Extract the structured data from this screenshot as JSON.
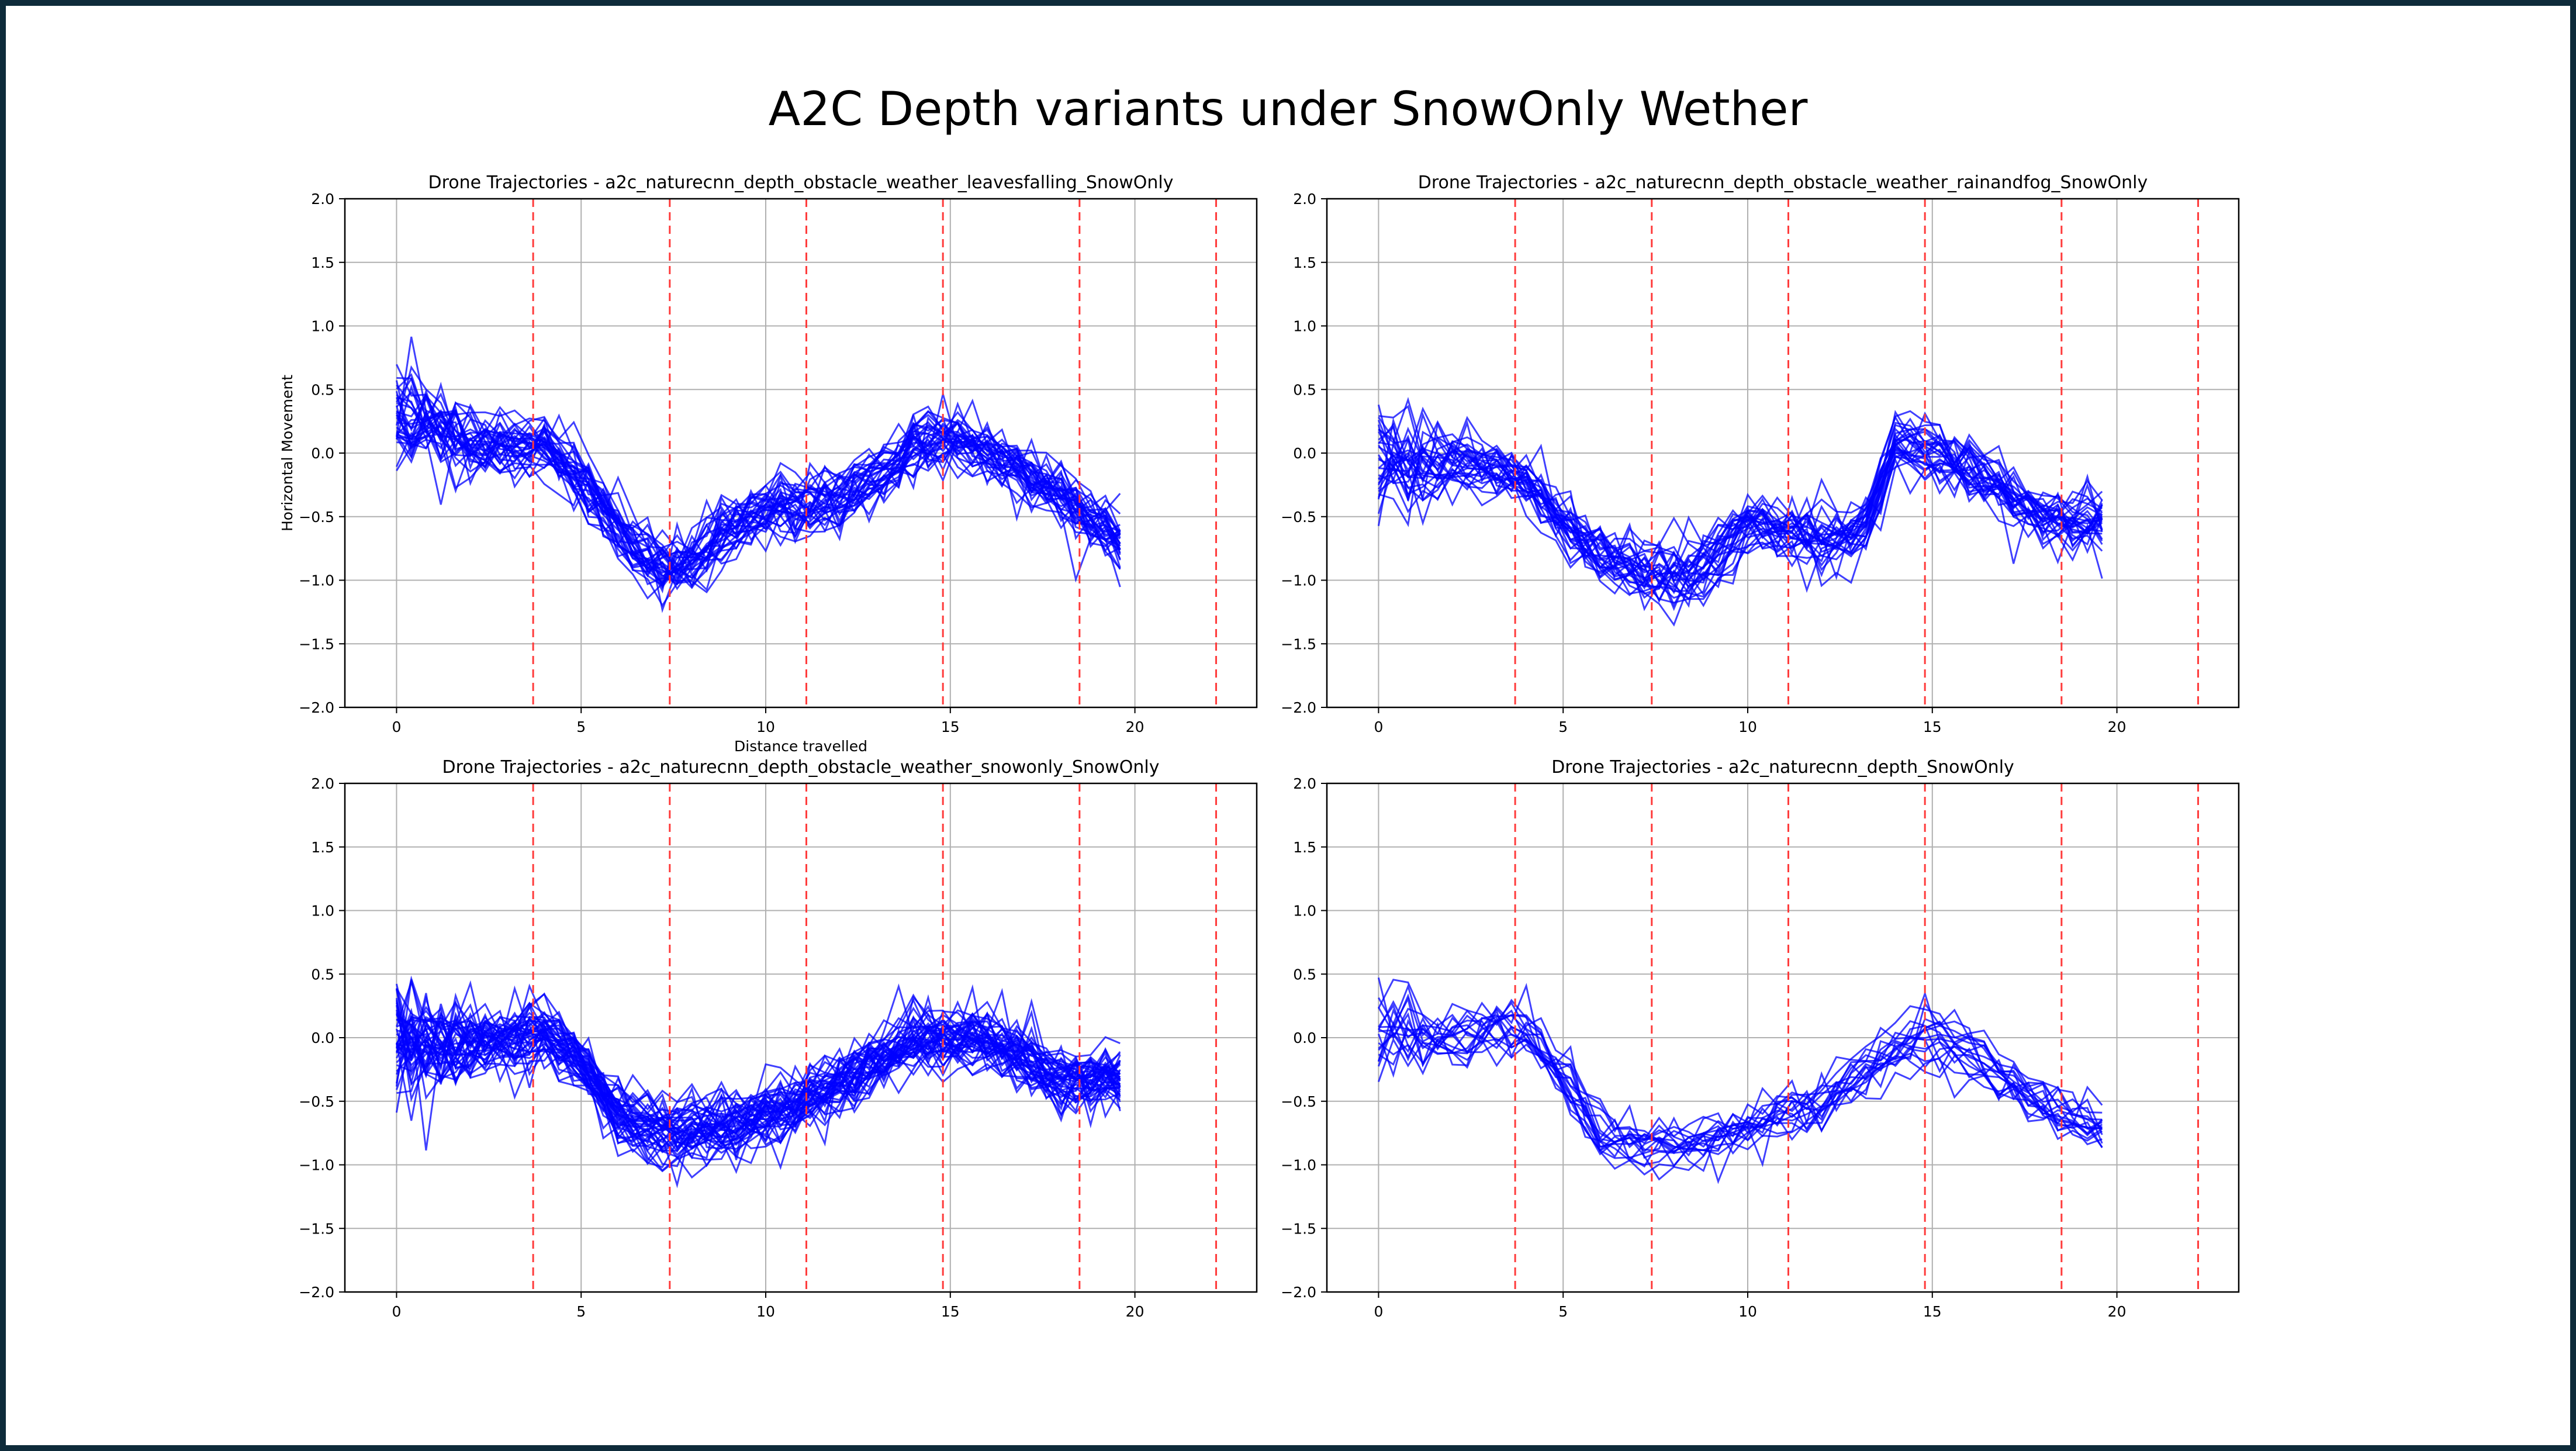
{
  "slide": {
    "title": "A2C Depth variants under SnowOnly Wether"
  },
  "colors": {
    "trajectory": "#0000ff",
    "marker": "#ff3b3b",
    "grid": "#b0b0b0",
    "background": "#ffffff",
    "frame": "#0e2b3a"
  },
  "chart_data": [
    {
      "type": "line",
      "title": "Drone Trajectories - a2c_naturecnn_depth_obstacle_weather_leavesfalling_SnowOnly",
      "xlabel": "Distance travelled",
      "ylabel": "Horizontal Movement",
      "xlim": [
        -1.4,
        23.3
      ],
      "ylim": [
        -2.0,
        2.0
      ],
      "x_ticks": [
        0,
        5,
        10,
        15,
        20
      ],
      "y_ticks": [
        -2.0,
        -1.5,
        -1.0,
        -0.5,
        0.0,
        0.5,
        1.0,
        1.5,
        2.0
      ],
      "grid": true,
      "vlines": [
        3.7,
        7.4,
        11.1,
        14.8,
        18.5,
        22.2
      ],
      "mean_path": {
        "x": [
          0,
          1,
          2,
          3,
          4,
          5,
          6,
          7,
          8,
          9,
          10,
          11,
          12,
          13,
          14,
          15,
          16,
          17,
          18,
          19,
          19.6
        ],
        "y": [
          0.3,
          0.2,
          0.1,
          0.05,
          0.05,
          -0.2,
          -0.6,
          -0.9,
          -0.85,
          -0.6,
          -0.45,
          -0.4,
          -0.35,
          -0.2,
          0.05,
          0.1,
          0.0,
          -0.15,
          -0.35,
          -0.55,
          -0.7
        ]
      },
      "spread": [
        0.35,
        0.3,
        0.2,
        0.15,
        0.15,
        0.15,
        0.15,
        0.15,
        0.15,
        0.15,
        0.15,
        0.15,
        0.15,
        0.15,
        0.15,
        0.15,
        0.15,
        0.15,
        0.15,
        0.15,
        0.15
      ],
      "trajectory_count": 35,
      "seed": 11
    },
    {
      "type": "line",
      "title": "Drone Trajectories - a2c_naturecnn_depth_obstacle_weather_rainandfog_SnowOnly",
      "xlabel": "",
      "ylabel": "",
      "xlim": [
        -1.4,
        23.3
      ],
      "ylim": [
        -2.0,
        2.0
      ],
      "x_ticks": [
        0,
        5,
        10,
        15,
        20
      ],
      "y_ticks": [
        -2.0,
        -1.5,
        -1.0,
        -0.5,
        0.0,
        0.5,
        1.0,
        1.5,
        2.0
      ],
      "grid": true,
      "vlines": [
        3.7,
        7.4,
        11.1,
        14.8,
        18.5,
        22.2
      ],
      "mean_path": {
        "x": [
          0,
          1,
          2,
          3,
          4,
          5,
          6,
          7,
          8,
          9,
          10,
          11,
          12,
          13,
          14,
          15,
          16,
          17,
          18,
          19,
          19.6
        ],
        "y": [
          0.0,
          -0.15,
          -0.05,
          -0.1,
          -0.2,
          -0.55,
          -0.8,
          -0.95,
          -1.0,
          -0.9,
          -0.55,
          -0.6,
          -0.75,
          -0.7,
          0.05,
          0.0,
          -0.1,
          -0.3,
          -0.5,
          -0.55,
          -0.55
        ]
      },
      "spread": [
        0.45,
        0.35,
        0.15,
        0.15,
        0.15,
        0.15,
        0.15,
        0.15,
        0.15,
        0.15,
        0.15,
        0.15,
        0.15,
        0.15,
        0.15,
        0.15,
        0.15,
        0.15,
        0.15,
        0.15,
        0.15
      ],
      "trajectory_count": 30,
      "seed": 23
    },
    {
      "type": "line",
      "title": "Drone Trajectories - a2c_naturecnn_depth_obstacle_weather_snowonly_SnowOnly",
      "xlabel": "",
      "ylabel": "",
      "xlim": [
        -1.4,
        23.3
      ],
      "ylim": [
        -2.0,
        2.0
      ],
      "x_ticks": [
        0,
        5,
        10,
        15,
        20
      ],
      "y_ticks": [
        -2.0,
        -1.5,
        -1.0,
        -0.5,
        0.0,
        0.5,
        1.0,
        1.5,
        2.0
      ],
      "grid": true,
      "vlines": [
        3.7,
        7.4,
        11.1,
        14.8,
        18.5,
        22.2
      ],
      "mean_path": {
        "x": [
          0,
          1,
          2,
          3,
          4,
          5,
          6,
          7,
          8,
          9,
          10,
          11,
          12,
          13,
          14,
          15,
          16,
          17,
          18,
          19,
          19.6
        ],
        "y": [
          0.0,
          -0.05,
          -0.05,
          0.0,
          0.05,
          -0.2,
          -0.6,
          -0.75,
          -0.75,
          -0.7,
          -0.6,
          -0.5,
          -0.35,
          -0.2,
          -0.05,
          -0.05,
          -0.05,
          -0.15,
          -0.35,
          -0.3,
          -0.35
        ]
      },
      "spread": [
        0.4,
        0.35,
        0.2,
        0.15,
        0.15,
        0.15,
        0.15,
        0.15,
        0.15,
        0.15,
        0.15,
        0.15,
        0.15,
        0.15,
        0.15,
        0.15,
        0.15,
        0.15,
        0.15,
        0.15,
        0.15
      ],
      "trajectory_count": 45,
      "seed": 37
    },
    {
      "type": "line",
      "title": "Drone Trajectories - a2c_naturecnn_depth_SnowOnly",
      "xlabel": "",
      "ylabel": "",
      "xlim": [
        -1.4,
        23.3
      ],
      "ylim": [
        -2.0,
        2.0
      ],
      "x_ticks": [
        0,
        5,
        10,
        15,
        20
      ],
      "y_ticks": [
        -2.0,
        -1.5,
        -1.0,
        -0.5,
        0.0,
        0.5,
        1.0,
        1.5,
        2.0
      ],
      "grid": true,
      "vlines": [
        3.7,
        7.4,
        11.1,
        14.8,
        18.5,
        22.2
      ],
      "mean_path": {
        "x": [
          0,
          1,
          2,
          3,
          4,
          5,
          6,
          7,
          8,
          9,
          10,
          11,
          12,
          13,
          14,
          15,
          16,
          17,
          18,
          19,
          19.6
        ],
        "y": [
          0.05,
          0.05,
          0.0,
          0.05,
          0.05,
          -0.35,
          -0.8,
          -0.85,
          -0.85,
          -0.8,
          -0.7,
          -0.55,
          -0.5,
          -0.3,
          -0.1,
          0.0,
          -0.1,
          -0.3,
          -0.5,
          -0.65,
          -0.7
        ]
      },
      "spread": [
        0.35,
        0.3,
        0.15,
        0.12,
        0.12,
        0.12,
        0.12,
        0.12,
        0.12,
        0.12,
        0.12,
        0.12,
        0.12,
        0.12,
        0.12,
        0.12,
        0.12,
        0.12,
        0.12,
        0.12,
        0.12
      ],
      "trajectory_count": 18,
      "seed": 53
    }
  ]
}
